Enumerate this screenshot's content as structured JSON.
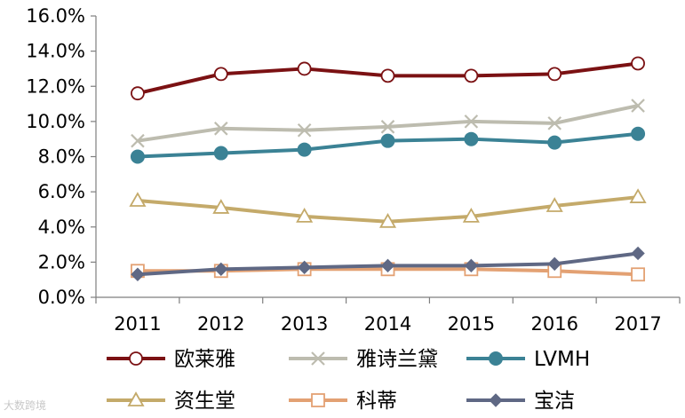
{
  "chart_data": {
    "type": "line",
    "title": "",
    "xlabel": "",
    "ylabel": "",
    "x": [
      "2011",
      "2012",
      "2013",
      "2014",
      "2015",
      "2016",
      "2017"
    ],
    "ylim": [
      0,
      16
    ],
    "yticks": [
      "0.0%",
      "2.0%",
      "4.0%",
      "6.0%",
      "8.0%",
      "10.0%",
      "12.0%",
      "14.0%",
      "16.0%"
    ],
    "legend_position": "bottom",
    "grid": false,
    "series": [
      {
        "name": "欧莱雅",
        "values": [
          11.6,
          12.7,
          13.0,
          12.6,
          12.6,
          12.7,
          13.3
        ],
        "color": "#7b1113",
        "marker": "circle-open"
      },
      {
        "name": "雅诗兰黛",
        "values": [
          8.9,
          9.6,
          9.5,
          9.7,
          10.0,
          9.9,
          10.9
        ],
        "color": "#bdbcaf",
        "marker": "x"
      },
      {
        "name": "LVMH",
        "values": [
          8.0,
          8.2,
          8.4,
          8.9,
          9.0,
          8.8,
          9.3
        ],
        "color": "#3b8295",
        "marker": "circle-filled"
      },
      {
        "name": "资生堂",
        "values": [
          5.5,
          5.1,
          4.6,
          4.3,
          4.6,
          5.2,
          5.7
        ],
        "color": "#c4aa6a",
        "marker": "triangle-open"
      },
      {
        "name": "科蒂",
        "values": [
          1.5,
          1.5,
          1.6,
          1.6,
          1.6,
          1.5,
          1.3
        ],
        "color": "#e3a173",
        "marker": "square-open"
      },
      {
        "name": "宝洁",
        "values": [
          1.3,
          1.6,
          1.7,
          1.8,
          1.8,
          1.9,
          2.5
        ],
        "color": "#5f6884",
        "marker": "diamond-filled"
      }
    ]
  },
  "watermark": "大数跨境"
}
